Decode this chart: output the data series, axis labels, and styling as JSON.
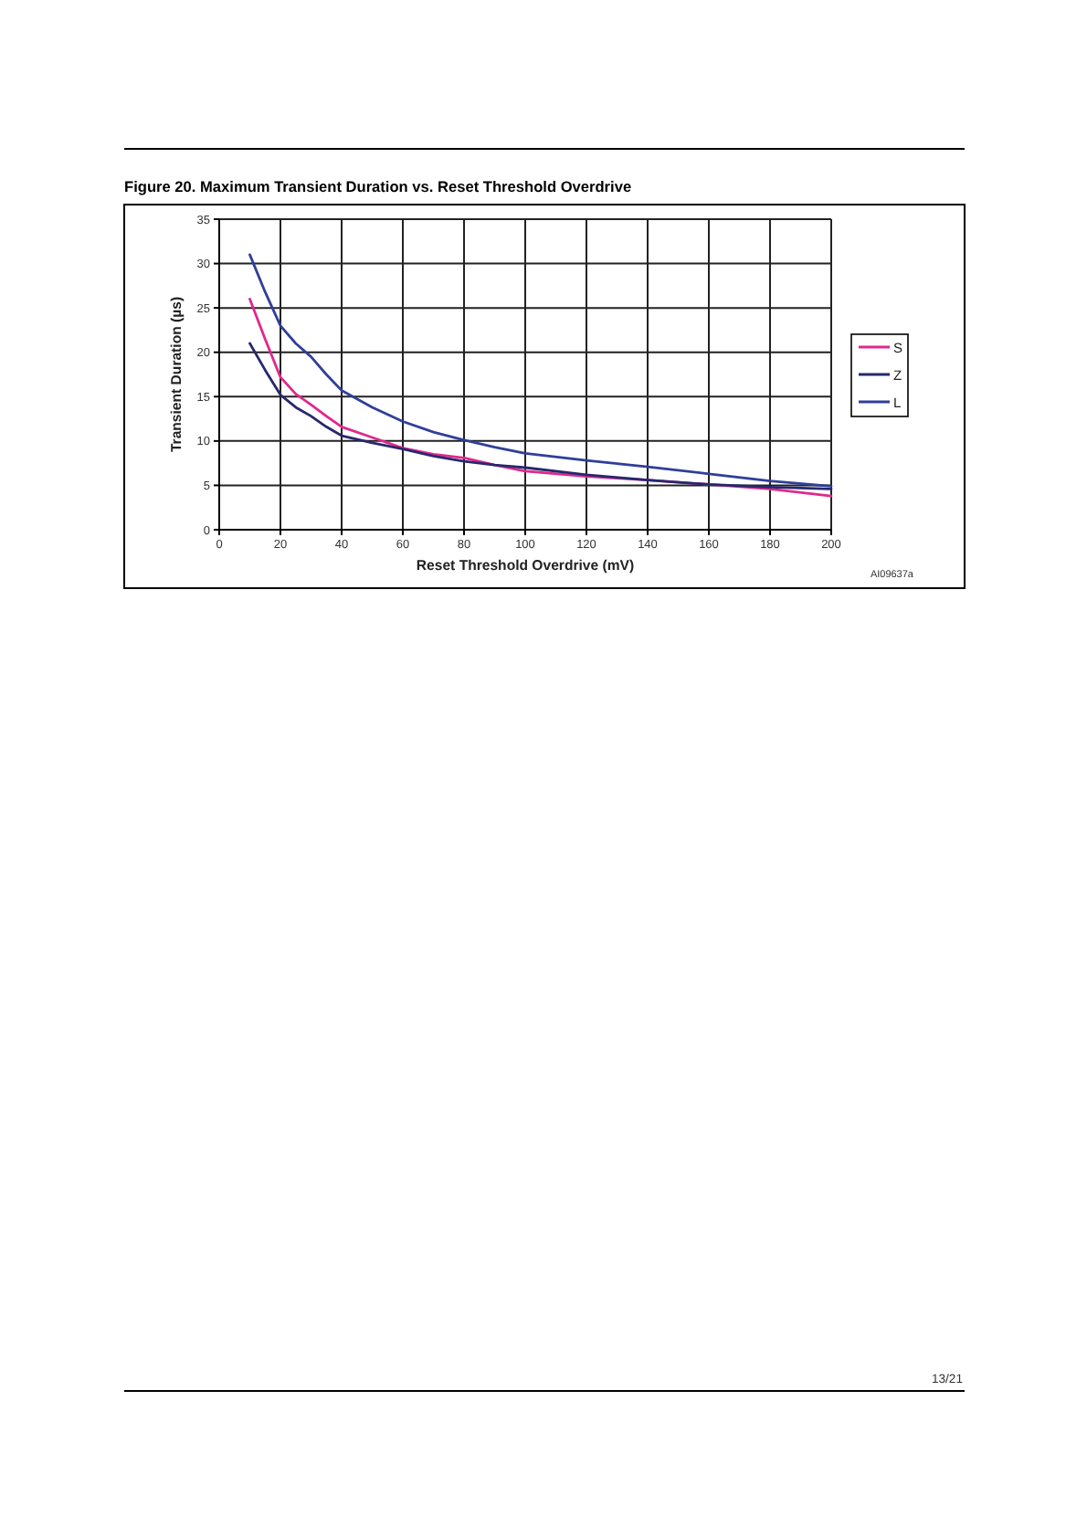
{
  "chart_data": {
    "type": "line",
    "title": "Figure 20. Maximum Transient Duration vs. Reset Threshold Overdrive",
    "xlabel": "Reset Threshold Overdrive (mV)",
    "ylabel": "Transient Duration (µs)",
    "x": [
      10,
      15,
      20,
      25,
      30,
      35,
      40,
      50,
      60,
      70,
      80,
      90,
      100,
      120,
      140,
      160,
      180,
      200
    ],
    "series": [
      {
        "name": "S",
        "color": "#e0288c",
        "values": [
          26,
          21.5,
          17.2,
          15.3,
          14.1,
          12.8,
          11.6,
          10.4,
          9.2,
          8.5,
          8.1,
          7.3,
          6.6,
          6.0,
          5.6,
          5.1,
          4.6,
          3.8
        ]
      },
      {
        "name": "Z",
        "color": "#27286e",
        "values": [
          21,
          18,
          15.2,
          13.8,
          12.8,
          11.6,
          10.6,
          9.8,
          9.1,
          8.3,
          7.7,
          7.3,
          7.0,
          6.2,
          5.6,
          5.1,
          4.8,
          4.6
        ]
      },
      {
        "name": "L",
        "color": "#2f3f9a",
        "values": [
          31,
          26.8,
          23,
          21,
          19.5,
          17.5,
          15.7,
          13.8,
          12.2,
          11,
          10.1,
          9.3,
          8.6,
          7.8,
          7.1,
          6.3,
          5.5,
          4.9
        ]
      }
    ],
    "xlim": [
      0,
      200
    ],
    "ylim": [
      0,
      35
    ],
    "xticks": [
      0,
      20,
      40,
      60,
      80,
      100,
      120,
      140,
      160,
      180,
      200
    ],
    "yticks": [
      0,
      5,
      10,
      15,
      20,
      25,
      30,
      35
    ],
    "grid": true,
    "legend": "right",
    "annotations": [
      "AI09637a",
      "13/21"
    ]
  }
}
